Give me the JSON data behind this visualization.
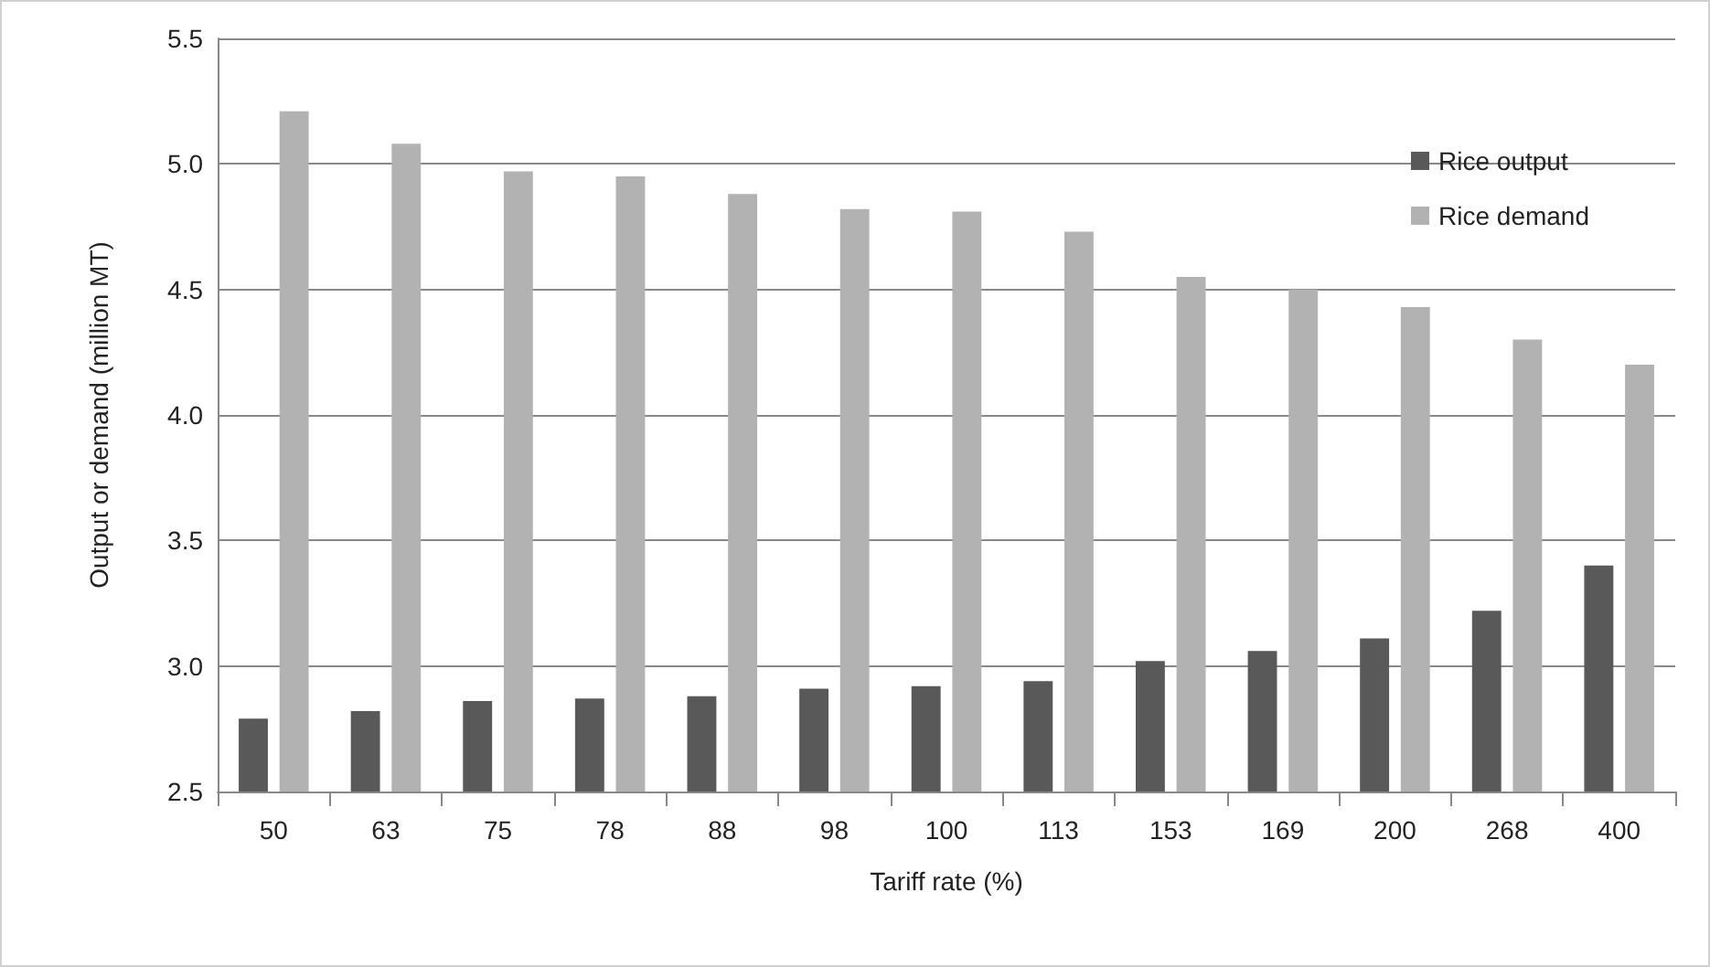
{
  "chart_data": {
    "type": "bar",
    "xlabel": "Tariff rate (%)",
    "ylabel": "Output or demand (million MT)",
    "categories": [
      "50",
      "63",
      "75",
      "78",
      "88",
      "98",
      "100",
      "113",
      "153",
      "169",
      "200",
      "268",
      "400"
    ],
    "series": [
      {
        "name": "Rice output",
        "color": "#595959",
        "values": [
          2.79,
          2.82,
          2.86,
          2.87,
          2.88,
          2.91,
          2.92,
          2.94,
          3.02,
          3.06,
          3.11,
          3.22,
          3.4
        ]
      },
      {
        "name": "Rice demand",
        "color": "#b2b2b2",
        "values": [
          5.21,
          5.08,
          4.97,
          4.95,
          4.88,
          4.82,
          4.81,
          4.73,
          4.55,
          4.5,
          4.43,
          4.3,
          4.2
        ]
      }
    ],
    "ylim": [
      2.5,
      5.5
    ],
    "yticks": [
      2.5,
      {
        "value": 3,
        "label": "3.0"
      },
      3.5,
      {
        "value": 4,
        "label": "4.0"
      },
      4.5,
      {
        "value": 5,
        "label": "5.0"
      },
      5.5
    ],
    "grid": "y",
    "legend": "top right"
  }
}
